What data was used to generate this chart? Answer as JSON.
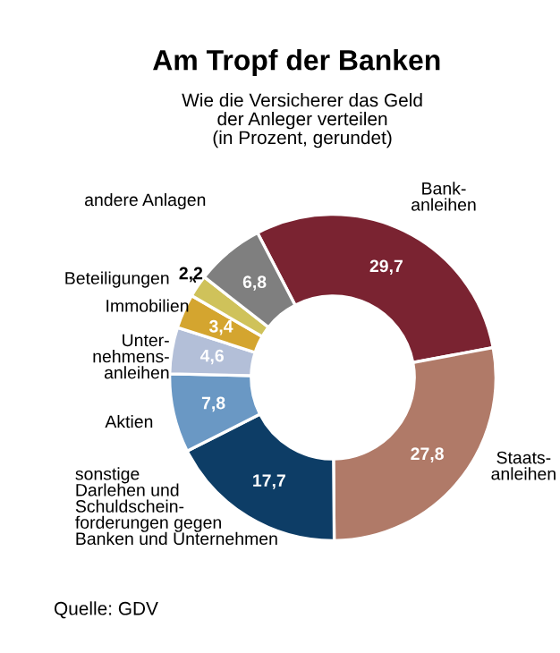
{
  "chart_data": {
    "type": "donut",
    "title": "Am Tropf der Banken",
    "subtitle": "Wie die Versicherer das Geld\nder Anleger verteilen\n(in Prozent, gerundet)",
    "categories": [
      "Bank-\nanleihen",
      "Staats-\nanleihen",
      "sonstige\nDarlehen und\nSchuldschein-\nforderungen gegen\nBanken und Unternehmen",
      "Aktien",
      "Unter-\nnehmens-\nanleihen",
      "Immobilien",
      "Beteiligungen",
      "andere Anlagen"
    ],
    "values": [
      29.7,
      27.8,
      17.7,
      7.8,
      4.6,
      3.4,
      2.2,
      6.8
    ],
    "value_labels": [
      "29,7",
      "27,8",
      "17,7",
      "7,8",
      "4,6",
      "3,4",
      "2,2",
      "6,8"
    ],
    "colors": [
      "#7a2331",
      "#b07a68",
      "#0d3d66",
      "#6a98c4",
      "#b3bfd8",
      "#d4a52f",
      "#cfc25a",
      "#7f7f7f"
    ],
    "annotations": [
      "Quelle: GDV"
    ]
  }
}
